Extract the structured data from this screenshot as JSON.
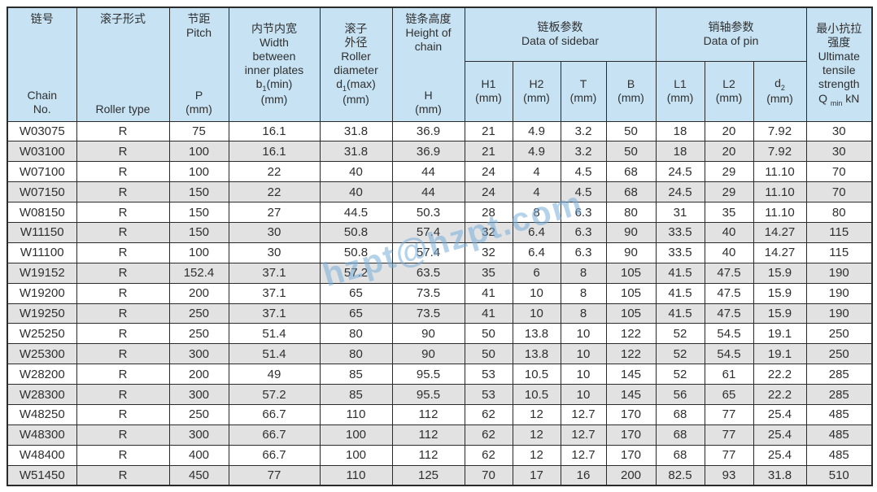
{
  "colors": {
    "header_bg": "#c6e2f3",
    "row_alt_bg": "#e2e2e2",
    "border": "#2a2a2a",
    "watermark": "#79aedb"
  },
  "watermark": {
    "text": "hzpt@hzpt.com"
  },
  "table": {
    "group_headers": {
      "sidebar": {
        "zh": "链板参数",
        "en": "Data of sidebar"
      },
      "pin": {
        "zh": "销轴参数",
        "en": "Data of pin"
      }
    },
    "col_headers": {
      "chain": {
        "top": "链号",
        "bottom": "Chain\nNo."
      },
      "roller_type": {
        "top": "滚子形式",
        "bottom": "Roller type"
      },
      "pitch": {
        "top": "节距\nPitch",
        "bottom": "P\n(mm)"
      },
      "inner_width": {
        "top": "内节内宽\nWidth\nbetween\ninner plates",
        "sym_main": "b",
        "sym_sub": "1",
        "sym_tail": "(min)",
        "unit": "(mm)"
      },
      "roller_diameter": {
        "top": "滚子\n外径\nRoller\ndiameter",
        "sym_main": "d",
        "sym_sub": "1",
        "sym_tail": "(max)",
        "unit": "(mm)"
      },
      "chain_height": {
        "top": "链条高度\nHeight of\nchain",
        "bottom": "H\n(mm)"
      },
      "strength": {
        "top": "最小抗拉\n强度\nUltimate\ntensile\nstrength",
        "q_main": "Q",
        "q_sub": "min",
        "q_tail": "kN"
      }
    },
    "sub_headers": [
      {
        "id": "h1",
        "label": "H1",
        "unit": "(mm)"
      },
      {
        "id": "h2",
        "label": "H2",
        "unit": "(mm)"
      },
      {
        "id": "t",
        "label": "T",
        "unit": "(mm)"
      },
      {
        "id": "b",
        "label": "B",
        "unit": "(mm)"
      },
      {
        "id": "l1",
        "label": "L1",
        "unit": "(mm)"
      },
      {
        "id": "l2",
        "label": "L2",
        "unit": "(mm)"
      },
      {
        "id": "d2",
        "label": "d",
        "sub": "2",
        "unit": "(mm)"
      }
    ],
    "rows": [
      [
        "W03075",
        "R",
        "75",
        "16.1",
        "31.8",
        "36.9",
        "21",
        "4.9",
        "3.2",
        "50",
        "18",
        "20",
        "7.92",
        "30"
      ],
      [
        "W03100",
        "R",
        "100",
        "16.1",
        "31.8",
        "36.9",
        "21",
        "4.9",
        "3.2",
        "50",
        "18",
        "20",
        "7.92",
        "30"
      ],
      [
        "W07100",
        "R",
        "100",
        "22",
        "40",
        "44",
        "24",
        "4",
        "4.5",
        "68",
        "24.5",
        "29",
        "11.10",
        "70"
      ],
      [
        "W07150",
        "R",
        "150",
        "22",
        "40",
        "44",
        "24",
        "4",
        "4.5",
        "68",
        "24.5",
        "29",
        "11.10",
        "70"
      ],
      [
        "W08150",
        "R",
        "150",
        "27",
        "44.5",
        "50.3",
        "28",
        "8",
        "6.3",
        "80",
        "31",
        "35",
        "11.10",
        "80"
      ],
      [
        "W11150",
        "R",
        "150",
        "30",
        "50.8",
        "57.4",
        "32",
        "6.4",
        "6.3",
        "90",
        "33.5",
        "40",
        "14.27",
        "115"
      ],
      [
        "W11100",
        "R",
        "100",
        "30",
        "50.8",
        "57.4",
        "32",
        "6.4",
        "6.3",
        "90",
        "33.5",
        "40",
        "14.27",
        "115"
      ],
      [
        "W19152",
        "R",
        "152.4",
        "37.1",
        "57.2",
        "63.5",
        "35",
        "6",
        "8",
        "105",
        "41.5",
        "47.5",
        "15.9",
        "190"
      ],
      [
        "W19200",
        "R",
        "200",
        "37.1",
        "65",
        "73.5",
        "41",
        "10",
        "8",
        "105",
        "41.5",
        "47.5",
        "15.9",
        "190"
      ],
      [
        "W19250",
        "R",
        "250",
        "37.1",
        "65",
        "73.5",
        "41",
        "10",
        "8",
        "105",
        "41.5",
        "47.5",
        "15.9",
        "190"
      ],
      [
        "W25250",
        "R",
        "250",
        "51.4",
        "80",
        "90",
        "50",
        "13.8",
        "10",
        "122",
        "52",
        "54.5",
        "19.1",
        "250"
      ],
      [
        "W25300",
        "R",
        "300",
        "51.4",
        "80",
        "90",
        "50",
        "13.8",
        "10",
        "122",
        "52",
        "54.5",
        "19.1",
        "250"
      ],
      [
        "W28200",
        "R",
        "200",
        "49",
        "85",
        "95.5",
        "53",
        "10.5",
        "10",
        "145",
        "52",
        "61",
        "22.2",
        "285"
      ],
      [
        "W28300",
        "R",
        "300",
        "57.2",
        "85",
        "95.5",
        "53",
        "10.5",
        "10",
        "145",
        "56",
        "65",
        "22.2",
        "285"
      ],
      [
        "W48250",
        "R",
        "250",
        "66.7",
        "110",
        "112",
        "62",
        "12",
        "12.7",
        "170",
        "68",
        "77",
        "25.4",
        "485"
      ],
      [
        "W48300",
        "R",
        "300",
        "66.7",
        "100",
        "112",
        "62",
        "12",
        "12.7",
        "170",
        "68",
        "77",
        "25.4",
        "485"
      ],
      [
        "W48400",
        "R",
        "400",
        "66.7",
        "100",
        "112",
        "62",
        "12",
        "12.7",
        "170",
        "68",
        "77",
        "25.4",
        "485"
      ],
      [
        "W51450",
        "R",
        "450",
        "77",
        "110",
        "125",
        "70",
        "17",
        "16",
        "200",
        "82.5",
        "93",
        "31.8",
        "510"
      ]
    ]
  }
}
